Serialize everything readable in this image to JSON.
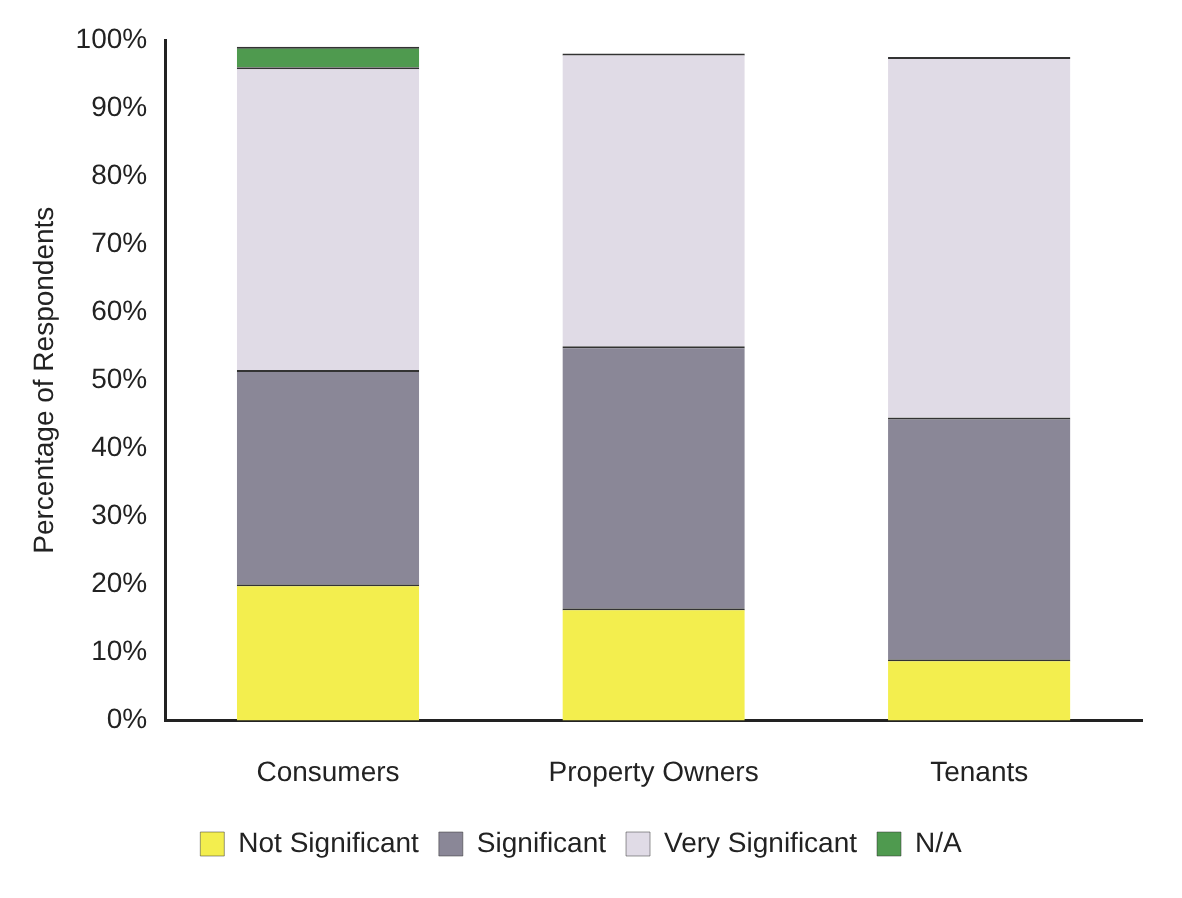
{
  "chart_data": {
    "type": "bar",
    "stacked": true,
    "ylabel": "Percentage of Respondents",
    "categories": [
      "Consumers",
      "Property Owners",
      "Tenants"
    ],
    "series": [
      {
        "name": "Not Significant",
        "color": "#f3ee4e",
        "values": [
          20,
          16.5,
          9
        ]
      },
      {
        "name": "Significant",
        "color": "#8a8797",
        "values": [
          31.5,
          38.5,
          35.5
        ]
      },
      {
        "name": "Very Significant",
        "color": "#e0dbe6",
        "values": [
          44.5,
          43,
          53
        ]
      },
      {
        "name": "N/A",
        "color": "#4f9a4f",
        "values": [
          3,
          null,
          null
        ]
      }
    ],
    "ylim": [
      0,
      100
    ],
    "yticks": [
      {
        "value": 0,
        "label": "0%"
      },
      {
        "value": 10,
        "label": "10%"
      },
      {
        "value": 20,
        "label": "20%"
      },
      {
        "value": 30,
        "label": "30%"
      },
      {
        "value": 40,
        "label": "40%"
      },
      {
        "value": 50,
        "label": "50%"
      },
      {
        "value": 60,
        "label": "60%"
      },
      {
        "value": 70,
        "label": "70%"
      },
      {
        "value": 80,
        "label": "80%"
      },
      {
        "value": 90,
        "label": "90%"
      },
      {
        "value": 100,
        "label": "100%"
      }
    ],
    "grid": false,
    "legend": "bottom"
  }
}
